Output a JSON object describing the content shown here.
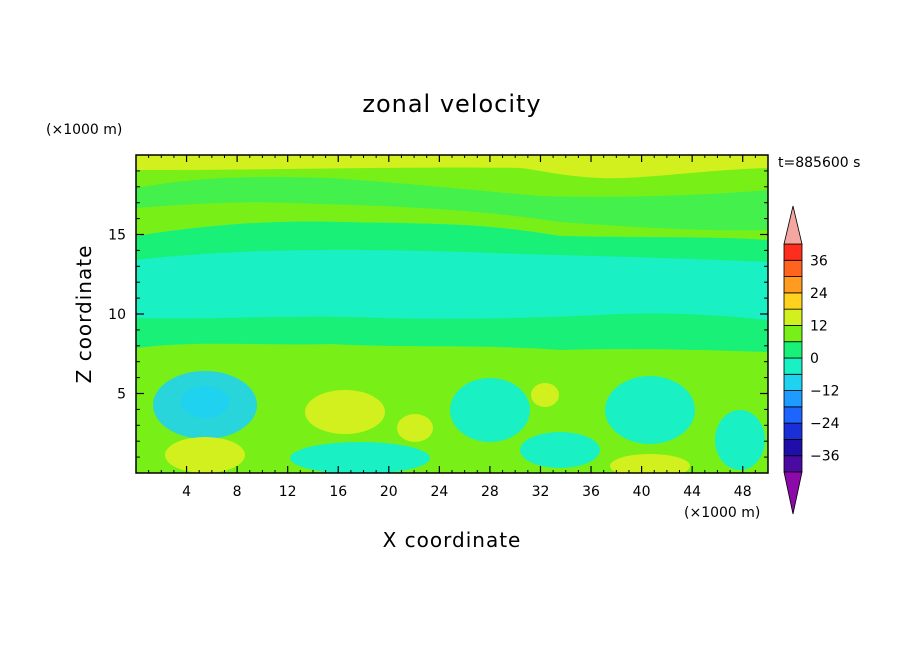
{
  "chart_data": {
    "type": "heatmap",
    "title": "zonal velocity",
    "xlabel": "X coordinate",
    "ylabel": "Z coordinate",
    "x_unit": "(×1000 m)",
    "y_unit": "(×1000 m)",
    "time_label": "t=885600 s",
    "xlim": [
      0,
      50
    ],
    "ylim": [
      0,
      20
    ],
    "x_ticks": [
      4,
      8,
      12,
      16,
      20,
      24,
      28,
      32,
      36,
      40,
      44,
      48
    ],
    "y_ticks": [
      5,
      10,
      15
    ],
    "grid": false,
    "colorbar": {
      "position": "right",
      "tick_labels": [
        "36",
        "24",
        "12",
        "0",
        "−12",
        "−24",
        "−36"
      ],
      "tick_values": [
        36,
        24,
        12,
        0,
        -12,
        -24,
        -36
      ],
      "levels": [
        -42,
        -36,
        -30,
        -24,
        -18,
        -12,
        -6,
        0,
        6,
        12,
        18,
        24,
        30,
        36,
        42
      ],
      "colors": [
        "#4b0aa0",
        "#1f0fa8",
        "#1a2fd8",
        "#1e64ff",
        "#1e9bff",
        "#1ed2f0",
        "#19f0c3",
        "#19f078",
        "#78f018",
        "#d2f01e",
        "#ffd21e",
        "#ff9b1e",
        "#ff641e",
        "#ff2d1e"
      ],
      "under_color": "#8c0aaa",
      "over_color": "#f4a6a0"
    },
    "field_description_levels": {
      "top_band_z_16_20": "0 to 12",
      "mid_band_z_7_16": "-12 to 0",
      "lower_band_z_0_7": "-18 to 12"
    }
  }
}
